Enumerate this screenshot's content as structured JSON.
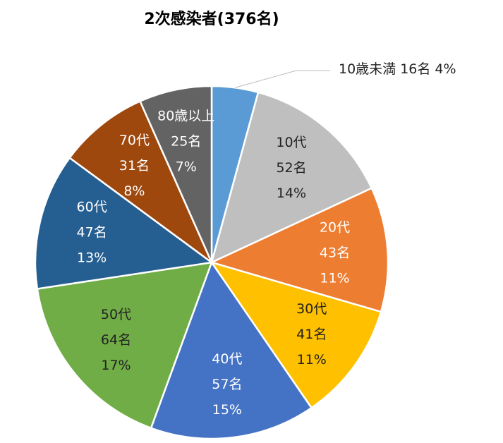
{
  "chart_data": {
    "type": "pie",
    "title": "2次感染者(376名)",
    "categories": [
      "10歳未満",
      "10代",
      "20代",
      "30代",
      "40代",
      "50代",
      "60代",
      "70代",
      "80歳以上"
    ],
    "values": [
      16,
      52,
      43,
      41,
      57,
      64,
      47,
      31,
      25
    ],
    "value_labels": [
      "16名",
      "52名",
      "43名",
      "41名",
      "57名",
      "64名",
      "47名",
      "31名",
      "25名"
    ],
    "percentages": [
      4,
      14,
      11,
      11,
      15,
      17,
      13,
      8,
      7
    ],
    "percentage_labels": [
      "4%",
      "14%",
      "11%",
      "11%",
      "15%",
      "17%",
      "13%",
      "8%",
      "7%"
    ],
    "colors": [
      "#5b9bd5",
      "#bfbfbf",
      "#ed7d31",
      "#ffc000",
      "#4472c4",
      "#70ad47",
      "#255e91",
      "#9e480e",
      "#636363"
    ],
    "label_colors": [
      "#222222",
      "#222222",
      "#ffffff",
      "#222222",
      "#ffffff",
      "#222222",
      "#ffffff",
      "#ffffff",
      "#ffffff"
    ]
  }
}
